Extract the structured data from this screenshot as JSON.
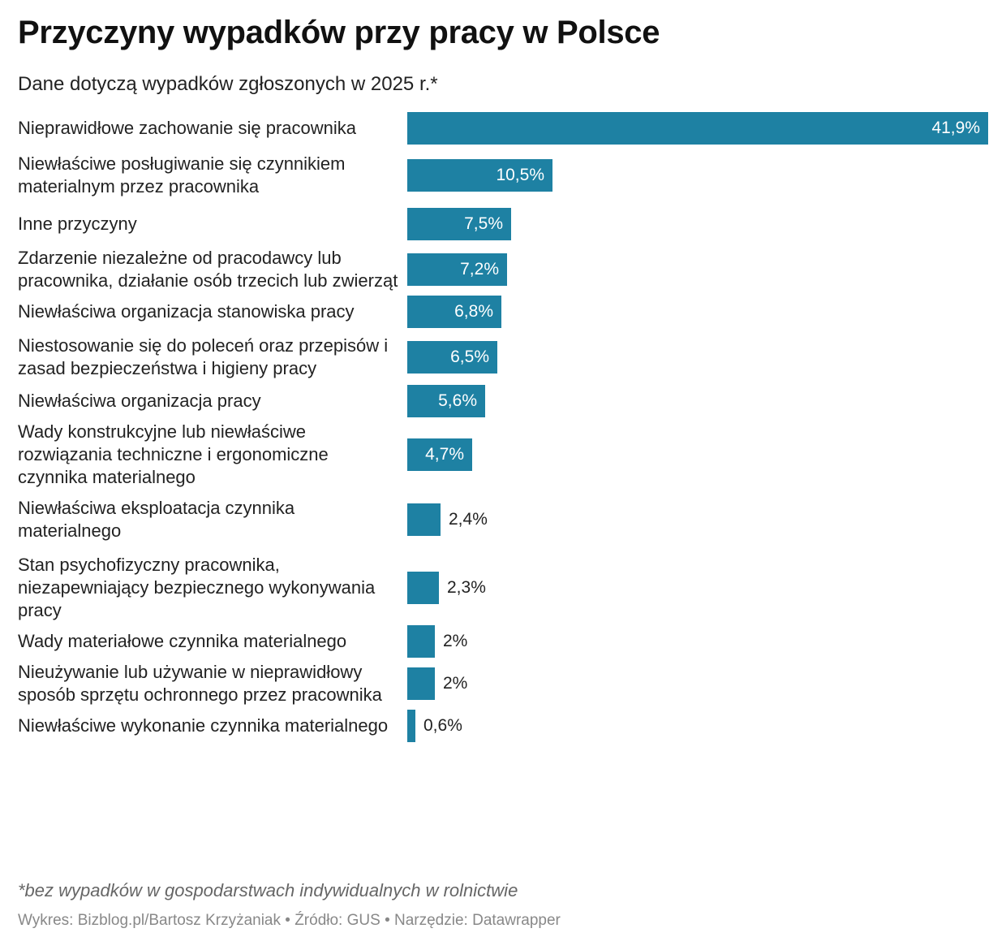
{
  "title": "Przyczyny wypadków przy pracy w Polsce",
  "subtitle": "Dane dotyczą wypadków zgłoszonych w 2025 r.*",
  "footnote": "*bez wypadków w gospodarstwach indywidualnych w rolnictwie",
  "credits": "Wykres: Bizblog.pl/Bartosz Krzyżaniak • Źródło: GUS • Narzędzie: Datawrapper",
  "colors": {
    "bar": "#1e81a3",
    "label_inside": "#ffffff",
    "label_outside": "#222222"
  },
  "chart_data": {
    "type": "bar",
    "orientation": "horizontal",
    "title": "Przyczyny wypadków przy pracy w Polsce",
    "subtitle": "Dane dotyczą wypadków zgłoszonych w 2025 r.*",
    "xlim": [
      0,
      41.9
    ],
    "grid": false,
    "legend": "none",
    "categories": [
      "Nieprawidłowe zachowanie się pracownika",
      "Niewłaściwe posługiwanie się czynnikiem materialnym przez pracownika",
      "Inne przyczyny",
      "Zdarzenie niezależne od pracodawcy lub pracownika, działanie osób trzecich lub zwierząt",
      "Niewłaściwa organizacja stanowiska pracy",
      "Niestosowanie się do poleceń oraz przepisów i zasad bezpieczeństwa i higieny pracy",
      "Niewłaściwa organizacja pracy",
      "Wady konstrukcyjne lub niewłaściwe rozwiązania techniczne i ergonomiczne czynnika materialnego",
      "Niewłaściwa eksploatacja czynnika materialnego",
      "Stan psychofizyczny pracownika, niezapewniający bezpiecznego wykonywania pracy",
      "Wady materiałowe czynnika materialnego",
      "Nieużywanie lub używanie w nieprawidłowy sposób sprzętu ochronnego przez pracownika",
      "Niewłaściwe wykonanie czynnika materialnego"
    ],
    "values": [
      41.9,
      10.5,
      7.5,
      7.2,
      6.8,
      6.5,
      5.6,
      4.7,
      2.4,
      2.3,
      2,
      2,
      0.6
    ],
    "value_labels": [
      "41,9%",
      "10,5%",
      "7,5%",
      "7,2%",
      "6,8%",
      "6,5%",
      "5,6%",
      "4,7%",
      "2,4%",
      "2,3%",
      "2%",
      "2%",
      "0,6%"
    ]
  }
}
